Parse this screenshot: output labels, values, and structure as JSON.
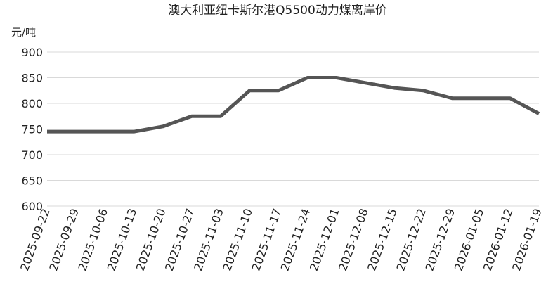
{
  "chart_data": {
    "type": "line",
    "title": "澳大利亚纽卡斯尔港Q5500动力煤离岸价",
    "y_label": "元/吨",
    "categories": [
      "2025-09-22",
      "2025-09-29",
      "2025-10-06",
      "2025-10-13",
      "2025-10-20",
      "2025-10-27",
      "2025-11-03",
      "2025-11-10",
      "2025-11-17",
      "2025-11-24",
      "2025-12-01",
      "2025-12-08",
      "2025-12-15",
      "2025-12-22",
      "2025-12-29",
      "2026-01-05",
      "2026-01-12",
      "2026-01-19"
    ],
    "series": [
      {
        "name": "澳大利亚纽卡斯尔港Q5500动力煤离岸价",
        "color": "#555555",
        "values": [
          745,
          745,
          745,
          745,
          755,
          775,
          775,
          825,
          825,
          850,
          850,
          840,
          830,
          825,
          810,
          810,
          810,
          780
        ]
      }
    ],
    "ylim": [
      600,
      900
    ],
    "yticks": [
      600,
      650,
      700,
      750,
      800,
      850,
      900
    ],
    "grid": true
  }
}
